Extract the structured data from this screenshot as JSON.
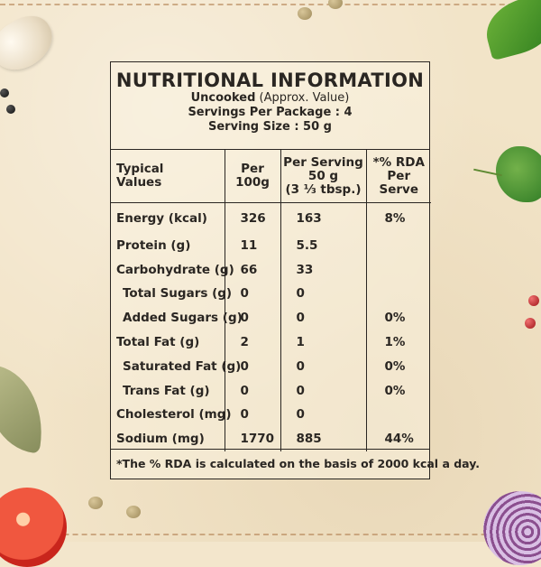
{
  "header": {
    "title": "NUTRITIONAL INFORMATION",
    "line1_bold": "Uncooked",
    "line1_normal": " (Approx. Value)",
    "line2": "Servings Per Package : 4",
    "line3": "Serving Size : 50 g"
  },
  "columns": {
    "col1": [
      "Typical",
      "Values"
    ],
    "col2": [
      "Per",
      "100g"
    ],
    "col3": [
      "Per Serving",
      "50 g",
      "(3 ⅓ tbsp.)"
    ],
    "col4": [
      "*% RDA",
      "Per Serve"
    ]
  },
  "rows": [
    {
      "name": "Energy (kcal)",
      "per100": "326",
      "serving": "163",
      "rda": "8%"
    },
    {
      "name": "Protein (g)",
      "per100": "11",
      "serving": "5.5",
      "rda": ""
    },
    {
      "name": "Carbohydrate (g)",
      "per100": "66",
      "serving": "33",
      "rda": ""
    },
    {
      "name": "Total Sugars (g)",
      "per100": "0",
      "serving": "0",
      "rda": ""
    },
    {
      "name": "Added Sugars (g)",
      "per100": "0",
      "serving": "0",
      "rda": "0%"
    },
    {
      "name": "Total Fat (g)",
      "per100": "2",
      "serving": "1",
      "rda": "1%"
    },
    {
      "name": "Saturated Fat (g)",
      "per100": "0",
      "serving": "0",
      "rda": "0%"
    },
    {
      "name": "Trans Fat (g)",
      "per100": "0",
      "serving": "0",
      "rda": "0%"
    },
    {
      "name": "Cholesterol (mg)",
      "per100": "0",
      "serving": "0",
      "rda": ""
    },
    {
      "name": "Sodium (mg)",
      "per100": "1770",
      "serving": "885",
      "rda": "44%"
    }
  ],
  "footer": "*The % RDA is calculated on the basis of 2000 kcal a day.",
  "colors": {
    "background": "#f2e4c8",
    "ink": "#2a2622",
    "stitch": "#b98a5d"
  }
}
